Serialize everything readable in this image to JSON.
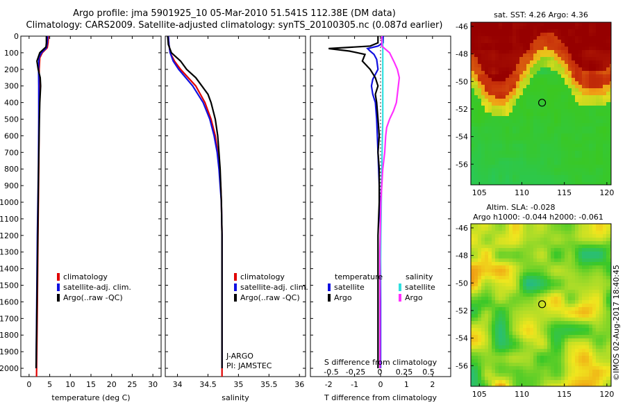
{
  "header": {
    "title_line1": "Argo profile: jma 5901925_10 05-Mar-2010 51.541S 112.38E (DM data)",
    "title_line2": "Climatology: CARS2009. Satellite-adjusted climatology: synTS_20100305.nc (0.087d earlier)"
  },
  "colors": {
    "climatology": "#e00000",
    "satellite": "#1010e0",
    "argo": "#000000",
    "sal_satellite": "#30e0e0",
    "sal_argo": "#ff30ff",
    "map_marker": "#000000"
  },
  "depth_axis": {
    "range": [
      0,
      2050
    ],
    "ticks": [
      0,
      100,
      200,
      300,
      400,
      500,
      600,
      700,
      800,
      900,
      1000,
      1100,
      1200,
      1300,
      1400,
      1500,
      1600,
      1700,
      1800,
      1900,
      2000
    ]
  },
  "chart_data": [
    {
      "id": "temperature",
      "type": "line",
      "xlabel": "temperature (deg C)",
      "xlim": [
        -2,
        32
      ],
      "xticks": [
        0,
        5,
        10,
        15,
        20,
        25,
        30
      ],
      "ylim": [
        0,
        2050
      ],
      "legend": {
        "placement": "lower-right",
        "entries": [
          "climatology",
          "satellite-adj. clim.",
          "Argo(..raw -QC)"
        ]
      },
      "series": [
        {
          "name": "climatology",
          "depth": [
            0,
            40,
            70,
            100,
            130,
            200,
            300,
            500,
            800,
            1200,
            1600,
            2050
          ],
          "value": [
            4.7,
            4.6,
            4.4,
            3.2,
            2.6,
            2.45,
            2.45,
            2.45,
            2.35,
            2.15,
            2.0,
            1.8
          ]
        },
        {
          "name": "satellite-adj. clim.",
          "depth": [
            0,
            40,
            70,
            100,
            130,
            200,
            300,
            500,
            800,
            1200,
            1600,
            2000
          ],
          "value": [
            4.5,
            4.4,
            4.2,
            3.0,
            2.4,
            2.3,
            2.35,
            2.35,
            2.25,
            2.0,
            1.85,
            1.7
          ]
        },
        {
          "name": "Argo(..raw -QC)",
          "depth": [
            0,
            40,
            65,
            100,
            150,
            200,
            250,
            300,
            400,
            500,
            800,
            1200,
            1600,
            2000
          ],
          "value": [
            4.2,
            4.2,
            4.1,
            2.6,
            1.9,
            2.2,
            2.7,
            2.8,
            2.6,
            2.5,
            2.3,
            2.1,
            1.9,
            1.7
          ]
        }
      ]
    },
    {
      "id": "salinity",
      "type": "line",
      "xlabel": "salinity",
      "xlim": [
        33.8,
        36.1
      ],
      "xticks": [
        34,
        34.5,
        35,
        35.5,
        36
      ],
      "xtick_labels": [
        "34",
        "34.5",
        "35",
        "35.5",
        "36"
      ],
      "ylim": [
        0,
        2050
      ],
      "legend": {
        "placement": "lower-right",
        "entries": [
          "climatology",
          "satellite-adj. clim.",
          "Argo(..raw -QC)"
        ]
      },
      "annotation": [
        "J-ARGO",
        "PI: JAMSTEC"
      ],
      "series": [
        {
          "name": "climatology",
          "depth": [
            0,
            50,
            100,
            150,
            200,
            300,
            400,
            500,
            600,
            700,
            800,
            900,
            1000,
            1200,
            1600,
            2050
          ],
          "value": [
            33.85,
            33.86,
            33.88,
            33.95,
            34.05,
            34.3,
            34.45,
            34.55,
            34.62,
            34.66,
            34.69,
            34.71,
            34.72,
            34.73,
            34.73,
            34.73
          ]
        },
        {
          "name": "satellite-adj. clim.",
          "depth": [
            0,
            50,
            100,
            150,
            200,
            300,
            400,
            500,
            600,
            700,
            800,
            900,
            1000,
            1200,
            1600,
            2000
          ],
          "value": [
            33.85,
            33.86,
            33.88,
            33.93,
            34.02,
            34.25,
            34.42,
            34.53,
            34.6,
            34.65,
            34.68,
            34.7,
            34.72,
            34.73,
            34.73,
            34.73
          ]
        },
        {
          "name": "Argo(..raw -QC)",
          "depth": [
            0,
            50,
            100,
            150,
            200,
            250,
            300,
            350,
            400,
            500,
            600,
            700,
            800,
            900,
            1000,
            1200,
            1600,
            2000
          ],
          "value": [
            33.84,
            33.85,
            33.9,
            34.05,
            34.15,
            34.3,
            34.4,
            34.5,
            34.55,
            34.62,
            34.66,
            34.68,
            34.7,
            34.71,
            34.72,
            34.73,
            34.73,
            34.73
          ]
        }
      ]
    },
    {
      "id": "difference",
      "type": "line",
      "xlabel": "T difference from climatology",
      "xlim": [
        -2.7,
        2.7
      ],
      "xticks": [
        -2,
        -1,
        0,
        1,
        2
      ],
      "top_xlabel": "S difference from climatology",
      "top_xticks": [
        -0.5,
        -0.25,
        0,
        0.25,
        0.5
      ],
      "top_xtick_labels": [
        "-0.5",
        "-0.25",
        "0",
        "0.25",
        "0.5"
      ],
      "ylim": [
        0,
        2050
      ],
      "legend": {
        "placement": "lower-center",
        "temperature_heading": "temperature",
        "salinity_heading": "salinity",
        "entries": [
          "satellite",
          "Argo",
          "satellite",
          "Argo"
        ]
      },
      "series": [
        {
          "name": "temperature satellite",
          "depth": [
            0,
            40,
            60,
            75,
            90,
            110,
            140,
            200,
            260,
            300,
            350,
            400,
            500,
            700,
            900,
            1200,
            1600,
            2000
          ],
          "value": [
            0.1,
            0.1,
            -0.1,
            -0.5,
            -0.4,
            -0.25,
            -0.15,
            -0.1,
            -0.3,
            -0.35,
            -0.3,
            -0.2,
            -0.15,
            -0.1,
            -0.05,
            0,
            0,
            0
          ]
        },
        {
          "name": "temperature Argo",
          "depth": [
            0,
            40,
            60,
            75,
            90,
            110,
            150,
            200,
            250,
            300,
            350,
            400,
            500,
            600,
            700,
            800,
            1000,
            1200,
            1400,
            1600,
            1800,
            2000
          ],
          "value": [
            -0.1,
            -0.1,
            -0.4,
            -2.0,
            -1.2,
            -0.6,
            -0.7,
            -0.4,
            -0.2,
            -0.1,
            -0.2,
            -0.15,
            -0.1,
            -0.05,
            -0.1,
            -0.05,
            -0.05,
            -0.1,
            -0.1,
            -0.1,
            -0.1,
            -0.1
          ]
        },
        {
          "name": "salinity satellite",
          "depth": [
            0,
            50,
            100,
            200,
            300,
            500,
            800,
            1200,
            1600,
            2000
          ],
          "value": [
            0.02,
            0.03,
            0.03,
            0.03,
            0.03,
            0.03,
            0.02,
            0.01,
            0.0,
            0.0
          ]
        },
        {
          "name": "salinity Argo",
          "depth": [
            0,
            60,
            100,
            160,
            200,
            250,
            300,
            350,
            400,
            450,
            500,
            550,
            600,
            700,
            800,
            1000,
            1300,
            1600,
            2000
          ],
          "value": [
            0.02,
            0.02,
            0.1,
            0.15,
            0.18,
            0.2,
            0.19,
            0.18,
            0.17,
            0.14,
            0.1,
            0.07,
            0.06,
            0.05,
            0.03,
            0.01,
            0.0,
            0.0,
            0.0
          ]
        }
      ]
    },
    {
      "id": "sst_map",
      "type": "heatmap",
      "title": "sat. SST: 4.26  Argo: 4.36",
      "xlim": [
        104,
        120.5
      ],
      "ylim": [
        -57.5,
        -45.7
      ],
      "xticks": [
        105,
        110,
        115,
        120
      ],
      "yticks": [
        -46,
        -48,
        -50,
        -52,
        -54,
        -56
      ],
      "marker": {
        "lon": 112.38,
        "lat": -51.541
      }
    },
    {
      "id": "sla_map",
      "type": "heatmap",
      "title_line1": "Altim. SLA: -0.028",
      "title_line2": "Argo h1000: -0.044  h2000: -0.061",
      "xlim": [
        104,
        120.5
      ],
      "ylim": [
        -57.5,
        -45.7
      ],
      "xticks": [
        105,
        110,
        115,
        120
      ],
      "yticks": [
        -46,
        -48,
        -50,
        -52,
        -54,
        -56
      ],
      "marker": {
        "lon": 112.38,
        "lat": -51.541
      }
    }
  ],
  "footer": {
    "stamp": "©IMOS 02-Aug-2017 18:40:45"
  }
}
